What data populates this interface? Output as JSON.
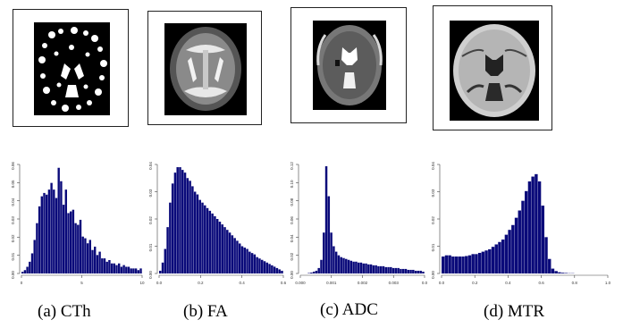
{
  "panels": [
    {
      "caption": "(a) CTh",
      "scan_icon": "cortical-thickness-map-icon"
    },
    {
      "caption": "(b) FA",
      "scan_icon": "fractional-anisotropy-map-icon"
    },
    {
      "caption": "(c) ADC",
      "scan_icon": "apparent-diffusion-coefficient-map-icon"
    },
    {
      "caption": "(d) MTR",
      "scan_icon": "magnetization-transfer-ratio-map-icon"
    }
  ],
  "colors": {
    "bar": "#0a0a7a",
    "frame": "#222222"
  },
  "chart_data": [
    {
      "type": "bar",
      "title": "",
      "xlim": [
        0,
        10.5
      ],
      "ylim": [
        0,
        0.065
      ],
      "xticks": [
        "0",
        "5",
        "10"
      ],
      "yticks": [
        "0.00",
        "0.01",
        "0.02",
        "0.03",
        "0.04",
        "0.05",
        "0.06"
      ],
      "values": [
        0.001,
        0.002,
        0.004,
        0.007,
        0.012,
        0.02,
        0.03,
        0.04,
        0.046,
        0.048,
        0.047,
        0.05,
        0.054,
        0.05,
        0.045,
        0.063,
        0.055,
        0.041,
        0.05,
        0.036,
        0.037,
        0.038,
        0.03,
        0.029,
        0.032,
        0.022,
        0.021,
        0.018,
        0.02,
        0.014,
        0.016,
        0.011,
        0.013,
        0.009,
        0.009,
        0.007,
        0.008,
        0.006,
        0.006,
        0.005,
        0.006,
        0.004,
        0.005,
        0.004,
        0.004,
        0.003,
        0.003,
        0.003,
        0.002,
        0.003
      ]
    },
    {
      "type": "bar",
      "title": "",
      "xlim": [
        0,
        0.7
      ],
      "ylim": [
        0,
        0.04
      ],
      "xticks": [
        "0.0",
        "0.2",
        "0.4",
        "0.6"
      ],
      "yticks": [
        "0.00",
        "0.01",
        "0.02",
        "0.03",
        "0.04"
      ],
      "values": [
        0.001,
        0.004,
        0.009,
        0.017,
        0.026,
        0.033,
        0.037,
        0.039,
        0.039,
        0.038,
        0.037,
        0.035,
        0.034,
        0.032,
        0.03,
        0.029,
        0.027,
        0.026,
        0.025,
        0.024,
        0.023,
        0.022,
        0.021,
        0.02,
        0.019,
        0.018,
        0.017,
        0.016,
        0.015,
        0.014,
        0.013,
        0.012,
        0.011,
        0.01,
        0.0095,
        0.009,
        0.008,
        0.0075,
        0.007,
        0.006,
        0.0055,
        0.005,
        0.0045,
        0.004,
        0.0035,
        0.003,
        0.0025,
        0.002,
        0.0015,
        0.001
      ]
    },
    {
      "type": "bar",
      "title": "",
      "xlim": [
        0,
        0.004
      ],
      "ylim": [
        0,
        0.12
      ],
      "xticks": [
        "0.000",
        "0.001",
        "0.002",
        "0.003",
        "0.0"
      ],
      "yticks": [
        "0.00",
        "0.02",
        "0.04",
        "0.06",
        "0.08",
        "0.10",
        "0.12"
      ],
      "values": [
        0.0,
        0.0,
        0.0,
        0.0005,
        0.001,
        0.002,
        0.003,
        0.006,
        0.015,
        0.045,
        0.118,
        0.085,
        0.045,
        0.03,
        0.024,
        0.02,
        0.018,
        0.017,
        0.016,
        0.015,
        0.014,
        0.013,
        0.013,
        0.012,
        0.012,
        0.011,
        0.011,
        0.01,
        0.01,
        0.009,
        0.009,
        0.008,
        0.008,
        0.008,
        0.007,
        0.007,
        0.007,
        0.006,
        0.006,
        0.006,
        0.005,
        0.005,
        0.005,
        0.004,
        0.004,
        0.004,
        0.003,
        0.003,
        0.003,
        0.002
      ]
    },
    {
      "type": "bar",
      "title": "",
      "xlim": [
        0,
        1.0
      ],
      "ylim": [
        0,
        0.045
      ],
      "xticks": [
        "0.0",
        "0.2",
        "0.4",
        "0.6",
        "0.8",
        "1.0"
      ],
      "yticks": [
        "0.00",
        "0.01",
        "0.02",
        "0.03",
        "0.04"
      ],
      "values": [
        0.007,
        0.0075,
        0.0075,
        0.007,
        0.007,
        0.007,
        0.007,
        0.0072,
        0.0075,
        0.008,
        0.008,
        0.0085,
        0.009,
        0.0095,
        0.01,
        0.011,
        0.012,
        0.013,
        0.014,
        0.016,
        0.018,
        0.02,
        0.023,
        0.026,
        0.03,
        0.034,
        0.038,
        0.04,
        0.041,
        0.038,
        0.028,
        0.015,
        0.006,
        0.002,
        0.001,
        0.0005,
        0.0003,
        0.0002,
        0.0001,
        0.0001,
        0.0,
        0.0,
        0.0,
        0.0,
        0.0,
        0.0,
        0.0,
        0.0,
        0.0,
        0.0
      ]
    }
  ]
}
